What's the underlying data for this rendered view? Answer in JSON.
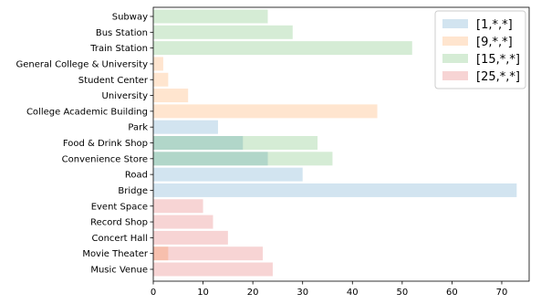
{
  "chart_data": {
    "type": "bar",
    "orientation": "horizontal",
    "overlay": true,
    "categories": [
      "Subway",
      "Bus Station",
      "Train Station",
      "General College & University",
      "Student Center",
      "University",
      "College Academic Building",
      "Park",
      "Food & Drink Shop",
      "Convenience Store",
      "Road",
      "Bridge",
      "Event Space",
      "Record Shop",
      "Concert Hall",
      "Movie Theater",
      "Music Venue"
    ],
    "series": [
      {
        "name": "[1,*,*]",
        "color": "#1f77b4",
        "values": [
          null,
          null,
          null,
          null,
          null,
          null,
          null,
          13,
          18,
          23,
          30,
          73,
          null,
          null,
          null,
          null,
          null
        ]
      },
      {
        "name": "[9,*,*]",
        "color": "#ff7f0e",
        "values": [
          null,
          null,
          null,
          2,
          3,
          7,
          45,
          null,
          null,
          null,
          null,
          null,
          null,
          null,
          null,
          3,
          null
        ]
      },
      {
        "name": "[15,*,*]",
        "color": "#2ca02c",
        "values": [
          23,
          28,
          52,
          null,
          null,
          null,
          null,
          null,
          33,
          36,
          null,
          null,
          null,
          null,
          null,
          null,
          null
        ]
      },
      {
        "name": "[25,*,*]",
        "color": "#d62728",
        "values": [
          null,
          null,
          null,
          null,
          null,
          null,
          null,
          null,
          null,
          null,
          null,
          null,
          10,
          12,
          15,
          22,
          24
        ]
      }
    ],
    "xticks": [
      0,
      10,
      20,
      30,
      40,
      50,
      60,
      70
    ],
    "xlim": [
      0,
      75.5
    ],
    "title": "",
    "xlabel": "",
    "ylabel": "",
    "grid": false,
    "legend_position": "top-right",
    "bar_opacity": 0.2
  }
}
